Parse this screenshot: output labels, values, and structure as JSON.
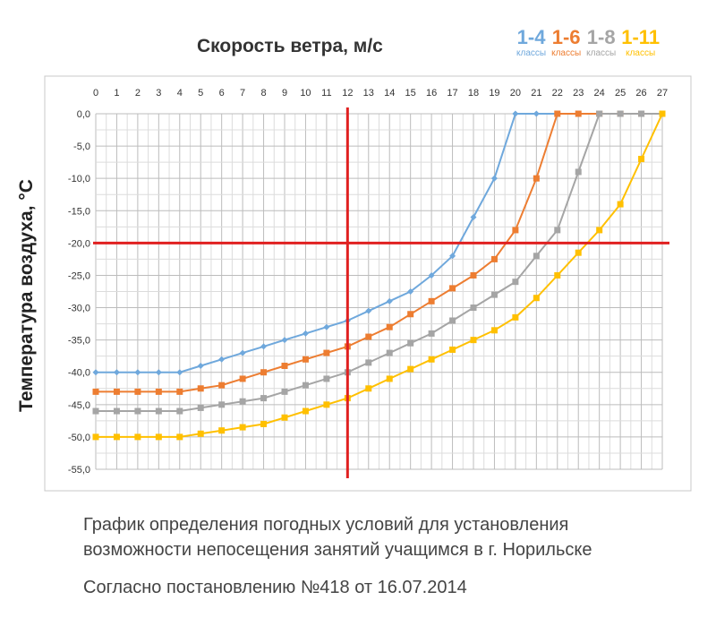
{
  "chart_data": {
    "type": "line",
    "title": "Скорость ветра, м/с",
    "ylabel": "Температура воздуха, °C",
    "x": [
      0,
      1,
      2,
      3,
      4,
      5,
      6,
      7,
      8,
      9,
      10,
      11,
      12,
      13,
      14,
      15,
      16,
      17,
      18,
      19,
      20,
      21,
      22,
      23,
      24,
      25,
      26,
      27
    ],
    "x_tick_labels": [
      "0",
      "1",
      "2",
      "3",
      "4",
      "5",
      "6",
      "7",
      "8",
      "9",
      "10",
      "11",
      "12",
      "13",
      "14",
      "15",
      "16",
      "17",
      "18",
      "19",
      "20",
      "21",
      "22",
      "23",
      "24",
      "25",
      "26",
      "27"
    ],
    "xlim": [
      0,
      27
    ],
    "x_axis_position": "top",
    "ylim": [
      -55,
      0
    ],
    "y_ticks": [
      0,
      -5,
      -10,
      -15,
      -20,
      -25,
      -30,
      -35,
      -40,
      -45,
      -50,
      -55
    ],
    "y_tick_labels": [
      "0,0",
      "-5,0",
      "-10,0",
      "-15,0",
      "-20,0",
      "-25,0",
      "-30,0",
      "-35,0",
      "-40,0",
      "-45,0",
      "-50,0",
      "-55,0"
    ],
    "grid": true,
    "legend_position": "top-right",
    "reference_lines": {
      "x": 12,
      "y": -20,
      "color": "#e02020"
    },
    "series": [
      {
        "name": "1-4",
        "sublabel": "классы",
        "color": "#6fa8dc",
        "marker": "diamond",
        "x": [
          0,
          1,
          2,
          3,
          4,
          5,
          6,
          7,
          8,
          9,
          10,
          11,
          12,
          13,
          14,
          15,
          16,
          17,
          18,
          19,
          20,
          21,
          22,
          23,
          24,
          25,
          26,
          27
        ],
        "values": [
          -40,
          -40,
          -40,
          -40,
          -40,
          -39,
          -38,
          -37,
          -36,
          -35,
          -34,
          -33,
          -32,
          -30.5,
          -29,
          -27.5,
          -25,
          -22,
          -16,
          -10,
          0,
          0,
          0,
          0,
          0,
          0,
          0,
          0
        ]
      },
      {
        "name": "1-6",
        "sublabel": "классы",
        "color": "#ed7d31",
        "marker": "square",
        "x": [
          0,
          1,
          2,
          3,
          4,
          5,
          6,
          7,
          8,
          9,
          10,
          11,
          12,
          13,
          14,
          15,
          16,
          17,
          18,
          19,
          20,
          21,
          22,
          23,
          24,
          25,
          26,
          27
        ],
        "values": [
          -43,
          -43,
          -43,
          -43,
          -43,
          -42.5,
          -42,
          -41,
          -40,
          -39,
          -38,
          -37,
          -36,
          -34.5,
          -33,
          -31,
          -29,
          -27,
          -25,
          -22.5,
          -18,
          -10,
          0,
          0,
          0,
          0,
          0,
          0
        ]
      },
      {
        "name": "1-8",
        "sublabel": "классы",
        "color": "#a5a5a5",
        "marker": "square",
        "x": [
          0,
          1,
          2,
          3,
          4,
          5,
          6,
          7,
          8,
          9,
          10,
          11,
          12,
          13,
          14,
          15,
          16,
          17,
          18,
          19,
          20,
          21,
          22,
          23,
          24,
          25,
          26,
          27
        ],
        "values": [
          -46,
          -46,
          -46,
          -46,
          -46,
          -45.5,
          -45,
          -44.5,
          -44,
          -43,
          -42,
          -41,
          -40,
          -38.5,
          -37,
          -35.5,
          -34,
          -32,
          -30,
          -28,
          -26,
          -22,
          -18,
          -9,
          0,
          0,
          0,
          0
        ]
      },
      {
        "name": "1-11",
        "sublabel": "классы",
        "color": "#ffc000",
        "marker": "square",
        "x": [
          0,
          1,
          2,
          3,
          4,
          5,
          6,
          7,
          8,
          9,
          10,
          11,
          12,
          13,
          14,
          15,
          16,
          17,
          18,
          19,
          20,
          21,
          22,
          23,
          24,
          25,
          26,
          27
        ],
        "values": [
          -50,
          -50,
          -50,
          -50,
          -50,
          -49.5,
          -49,
          -48.5,
          -48,
          -47,
          -46,
          -45,
          -44,
          -42.5,
          -41,
          -39.5,
          -38,
          -36.5,
          -35,
          -33.5,
          -31.5,
          -28.5,
          -25,
          -21.5,
          -18,
          -14,
          -7,
          0
        ]
      }
    ]
  },
  "caption": {
    "line1": "График определения погодных условий для установления",
    "line2": "возможности непосещения занятий учащимся в г. Норильске",
    "line3": "Согласно постановлению №418 от 16.07.2014"
  }
}
